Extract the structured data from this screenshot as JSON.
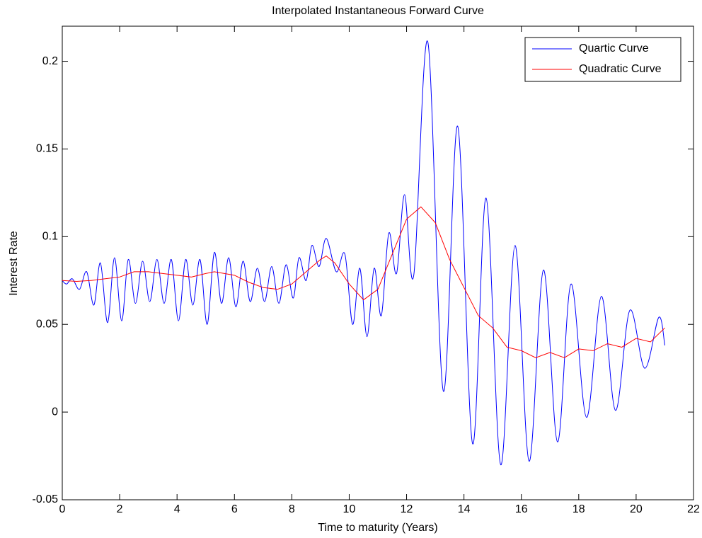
{
  "chart_data": {
    "type": "line",
    "title": "Interpolated Instantaneous Forward Curve",
    "x_label": "Time to maturity (Years)",
    "y_label": "Interest Rate",
    "xlim": [
      0,
      22
    ],
    "xticks": [
      0,
      2,
      4,
      6,
      8,
      10,
      12,
      14,
      16,
      18,
      20,
      22
    ],
    "ylim": [
      -0.05,
      0.22
    ],
    "yticks": [
      -0.05,
      0,
      0.05,
      0.1,
      0.15,
      0.2
    ],
    "legend": "upper right",
    "series": [
      {
        "name": "Quartic Curve",
        "color": "#0000ff",
        "smooth": true,
        "x": [
          0,
          0.15,
          0.35,
          0.6,
          0.85,
          1.1,
          1.33,
          1.58,
          1.82,
          2.07,
          2.3,
          2.55,
          2.8,
          3.05,
          3.3,
          3.55,
          3.8,
          4.05,
          4.3,
          4.55,
          4.8,
          5.05,
          5.3,
          5.55,
          5.8,
          6.05,
          6.3,
          6.55,
          6.8,
          7.05,
          7.3,
          7.55,
          7.8,
          8.05,
          8.25,
          8.5,
          8.7,
          8.95,
          9.2,
          9.55,
          9.85,
          10.12,
          10.37,
          10.62,
          10.87,
          11.12,
          11.38,
          11.65,
          11.93,
          12.25,
          12.74,
          13.28,
          13.78,
          14.3,
          14.77,
          15.28,
          15.78,
          16.27,
          16.77,
          17.26,
          17.73,
          18.27,
          18.79,
          19.28,
          19.78,
          20.3,
          20.79,
          21.0
        ],
        "values": [
          0.075,
          0.073,
          0.076,
          0.07,
          0.08,
          0.061,
          0.085,
          0.051,
          0.088,
          0.052,
          0.087,
          0.062,
          0.086,
          0.063,
          0.087,
          0.062,
          0.087,
          0.052,
          0.087,
          0.061,
          0.087,
          0.05,
          0.091,
          0.062,
          0.088,
          0.06,
          0.086,
          0.063,
          0.082,
          0.063,
          0.083,
          0.062,
          0.084,
          0.065,
          0.088,
          0.075,
          0.095,
          0.083,
          0.099,
          0.08,
          0.09,
          0.05,
          0.082,
          0.043,
          0.082,
          0.055,
          0.102,
          0.079,
          0.124,
          0.078,
          0.211,
          0.012,
          0.163,
          -0.018,
          0.122,
          -0.03,
          0.095,
          -0.028,
          0.081,
          -0.017,
          0.073,
          -0.003,
          0.066,
          0.001,
          0.058,
          0.025,
          0.054,
          0.038
        ]
      },
      {
        "name": "Quadratic Curve",
        "color": "#ff0000",
        "smooth": false,
        "x": [
          0,
          0.5,
          1,
          1.5,
          2,
          2.5,
          3,
          3.5,
          4,
          4.5,
          5,
          5.3,
          6,
          6.5,
          7,
          7.5,
          8,
          8.5,
          9,
          9.2,
          9.5,
          10,
          10.5,
          11,
          11.5,
          12,
          12.5,
          13,
          13.5,
          14,
          14.5,
          15,
          15.5,
          16,
          16.5,
          17,
          17.5,
          18,
          18.5,
          19,
          19.5,
          20,
          20.5,
          21
        ],
        "values": [
          0.075,
          0.0745,
          0.075,
          0.076,
          0.077,
          0.08,
          0.08,
          0.079,
          0.078,
          0.077,
          0.079,
          0.08,
          0.078,
          0.074,
          0.071,
          0.07,
          0.073,
          0.08,
          0.087,
          0.089,
          0.085,
          0.073,
          0.064,
          0.07,
          0.09,
          0.11,
          0.117,
          0.108,
          0.087,
          0.071,
          0.055,
          0.048,
          0.037,
          0.035,
          0.031,
          0.034,
          0.031,
          0.036,
          0.035,
          0.039,
          0.037,
          0.042,
          0.04,
          0.048
        ]
      }
    ]
  }
}
